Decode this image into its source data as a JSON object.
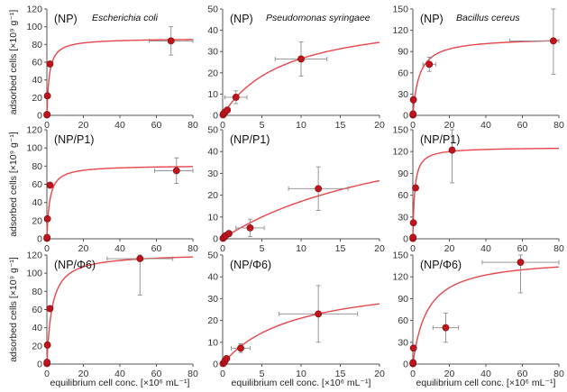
{
  "figure": {
    "xlabel": "equilibrium cell conc. [×10⁶ mL⁻¹]",
    "ylabel": "adsorbed cells [×10⁹ g⁻¹]"
  },
  "colors": {
    "point": "#c0141c",
    "fit": "#e8464a",
    "errorbar": "#8c8c8c",
    "axis": "#555555"
  },
  "chart_data": [
    {
      "type": "scatter",
      "row": 0,
      "col": 0,
      "label": "(NP)",
      "species": "Escherichia coli",
      "xlim": [
        0,
        80
      ],
      "ylim": [
        0,
        120
      ],
      "xticks": [
        0,
        20,
        40,
        60,
        80
      ],
      "yticks": [
        0,
        20,
        40,
        60,
        80,
        100,
        120
      ],
      "points": [
        {
          "x": 0.05,
          "y": 0.5
        },
        {
          "x": 0.1,
          "y": 1
        },
        {
          "x": 0.3,
          "y": 22
        },
        {
          "x": 1.7,
          "y": 58,
          "xerr": 0.5,
          "yerr": 1
        },
        {
          "x": 68,
          "y": 84,
          "xerr": 12,
          "yerr": 16
        }
      ],
      "fit": {
        "model": "langmuir",
        "qmax": 87,
        "k": 1.3
      }
    },
    {
      "type": "scatter",
      "row": 0,
      "col": 1,
      "label": "(NP)",
      "species": "Pseudomonas syringaee",
      "xlim": [
        0,
        20
      ],
      "ylim": [
        0,
        50
      ],
      "xticks": [
        0,
        5,
        10,
        15,
        20
      ],
      "yticks": [
        0,
        10,
        20,
        30,
        40,
        50
      ],
      "points": [
        {
          "x": 0.05,
          "y": 0.2
        },
        {
          "x": 0.1,
          "y": 0.8
        },
        {
          "x": 0.3,
          "y": 1.5
        },
        {
          "x": 0.6,
          "y": 2.5
        },
        {
          "x": 1.7,
          "y": 8.5,
          "xerr": 1.4,
          "yerr": 3
        },
        {
          "x": 10,
          "y": 26.5,
          "xerr": 3.3,
          "yerr": 8
        }
      ],
      "fit": {
        "model": "langmuir",
        "qmax": 48,
        "k": 8
      }
    },
    {
      "type": "scatter",
      "row": 0,
      "col": 2,
      "label": "(NP)",
      "species": "Bacillus cereus",
      "xlim": [
        0,
        80
      ],
      "ylim": [
        0,
        150
      ],
      "xticks": [
        0,
        20,
        40,
        60,
        80
      ],
      "yticks": [
        0,
        30,
        60,
        90,
        120,
        150
      ],
      "points": [
        {
          "x": 0.05,
          "y": 0.5
        },
        {
          "x": 0.1,
          "y": 2
        },
        {
          "x": 0.3,
          "y": 22
        },
        {
          "x": 9,
          "y": 72,
          "xerr": 3.5,
          "yerr": 10
        },
        {
          "x": 77,
          "y": 105,
          "xerr": 24,
          "yerr": 47
        }
      ],
      "fit": {
        "model": "langmuir",
        "qmax": 110,
        "k": 3.5
      }
    },
    {
      "type": "scatter",
      "row": 1,
      "col": 0,
      "label": "(NP/P1)",
      "xlim": [
        0,
        80
      ],
      "ylim": [
        0,
        120
      ],
      "xticks": [
        0,
        20,
        40,
        60,
        80
      ],
      "yticks": [
        0,
        20,
        40,
        60,
        80,
        100,
        120
      ],
      "points": [
        {
          "x": 0.05,
          "y": 0.5
        },
        {
          "x": 0.1,
          "y": 1.5
        },
        {
          "x": 0.3,
          "y": 22
        },
        {
          "x": 1.7,
          "y": 59,
          "xerr": 0.5,
          "yerr": 1
        },
        {
          "x": 71,
          "y": 75,
          "xerr": 12,
          "yerr": 14
        }
      ],
      "fit": {
        "model": "langmuir",
        "qmax": 81,
        "k": 1.5
      }
    },
    {
      "type": "scatter",
      "row": 1,
      "col": 1,
      "label": "(NP/P1)",
      "xlim": [
        0,
        20
      ],
      "ylim": [
        0,
        50
      ],
      "xticks": [
        0,
        5,
        10,
        15,
        20
      ],
      "yticks": [
        0,
        10,
        20,
        30,
        40,
        50
      ],
      "points": [
        {
          "x": 0.05,
          "y": 0.2
        },
        {
          "x": 0.2,
          "y": 0.8
        },
        {
          "x": 0.4,
          "y": 1.5
        },
        {
          "x": 0.8,
          "y": 2.4
        },
        {
          "x": 3.5,
          "y": 5,
          "xerr": 1.8,
          "yerr": 4
        },
        {
          "x": 12.2,
          "y": 23,
          "xerr": 3.8,
          "yerr": 10
        }
      ],
      "fit": {
        "model": "langmuir",
        "qmax": 60,
        "k": 25
      }
    },
    {
      "type": "scatter",
      "row": 1,
      "col": 2,
      "label": "(NP/P1)",
      "xlim": [
        0,
        80
      ],
      "ylim": [
        0,
        150
      ],
      "xticks": [
        0,
        20,
        40,
        60,
        80
      ],
      "yticks": [
        0,
        30,
        60,
        90,
        120,
        150
      ],
      "points": [
        {
          "x": 0.05,
          "y": 0.5
        },
        {
          "x": 0.1,
          "y": 2
        },
        {
          "x": 0.3,
          "y": 22
        },
        {
          "x": 1.5,
          "y": 70,
          "xerr": 0.6,
          "yerr": 2
        },
        {
          "x": 21.5,
          "y": 122,
          "xerr": 0.5,
          "yerr": 45
        }
      ],
      "fit": {
        "model": "langmuir",
        "qmax": 126,
        "k": 1
      }
    },
    {
      "type": "scatter",
      "row": 2,
      "col": 0,
      "label": "(NP/Φ6)",
      "xlim": [
        0,
        80
      ],
      "ylim": [
        0,
        120
      ],
      "xticks": [
        0,
        20,
        40,
        60,
        80
      ],
      "yticks": [
        0,
        20,
        40,
        60,
        80,
        100,
        120
      ],
      "points": [
        {
          "x": 0.05,
          "y": 0.5
        },
        {
          "x": 0.1,
          "y": 2
        },
        {
          "x": 0.3,
          "y": 21
        },
        {
          "x": 1.7,
          "y": 61,
          "xerr": 0.5,
          "yerr": 1
        },
        {
          "x": 51,
          "y": 116,
          "xerr": 18,
          "yerr": 40
        }
      ],
      "fit": {
        "model": "langmuir",
        "qmax": 122,
        "k": 2.8
      }
    },
    {
      "type": "scatter",
      "row": 2,
      "col": 1,
      "label": "(NP/Φ6)",
      "xlim": [
        0,
        20
      ],
      "ylim": [
        0,
        50
      ],
      "xticks": [
        0,
        5,
        10,
        15,
        20
      ],
      "yticks": [
        0,
        10,
        20,
        30,
        40,
        50
      ],
      "points": [
        {
          "x": 0.05,
          "y": 0.2
        },
        {
          "x": 0.2,
          "y": 0.8
        },
        {
          "x": 0.3,
          "y": 1.5
        },
        {
          "x": 0.5,
          "y": 2.5
        },
        {
          "x": 2.3,
          "y": 7.3,
          "xerr": 1.2,
          "yerr": 2
        },
        {
          "x": 12.2,
          "y": 23,
          "xerr": 5,
          "yerr": 13
        }
      ],
      "fit": {
        "model": "langmuir",
        "qmax": 40,
        "k": 9
      }
    },
    {
      "type": "scatter",
      "row": 2,
      "col": 2,
      "label": "(NP/Φ6)",
      "xlim": [
        0,
        80
      ],
      "ylim": [
        0,
        150
      ],
      "xticks": [
        0,
        20,
        40,
        60,
        80
      ],
      "yticks": [
        0,
        30,
        60,
        90,
        120,
        150
      ],
      "points": [
        {
          "x": 0.05,
          "y": 0.5
        },
        {
          "x": 0.1,
          "y": 2
        },
        {
          "x": 0.3,
          "y": 22
        },
        {
          "x": 18,
          "y": 50,
          "xerr": 7,
          "yerr": 20
        },
        {
          "x": 59,
          "y": 140,
          "xerr": 21,
          "yerr": 42
        }
      ],
      "fit": {
        "model": "langmuir",
        "qmax": 147,
        "k": 8
      }
    }
  ]
}
